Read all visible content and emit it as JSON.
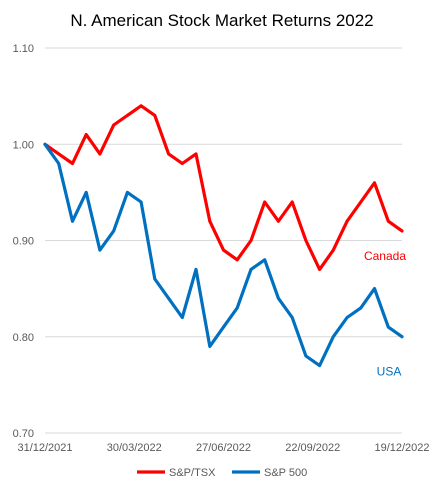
{
  "chart_data": {
    "type": "line",
    "title": "N. American Stock Market Returns 2022",
    "xlabel": "",
    "ylabel": "",
    "ylim": [
      0.7,
      1.1
    ],
    "y_ticks": [
      "0.70",
      "0.80",
      "0.90",
      "1.00",
      "1.10"
    ],
    "x_ticks": [
      "31/12/2021",
      "30/03/2022",
      "27/06/2022",
      "22/09/2022",
      "19/12/2022"
    ],
    "grid": "horizontal",
    "legend_placement": "bottom",
    "x": [
      "31/12/2021",
      "14/01/2022",
      "28/01/2022",
      "11/02/2022",
      "25/02/2022",
      "11/03/2022",
      "25/03/2022",
      "08/04/2022",
      "22/04/2022",
      "06/05/2022",
      "20/05/2022",
      "03/06/2022",
      "17/06/2022",
      "01/07/2022",
      "15/07/2022",
      "29/07/2022",
      "12/08/2022",
      "26/08/2022",
      "09/09/2022",
      "23/09/2022",
      "07/10/2022",
      "21/10/2022",
      "04/11/2022",
      "18/11/2022",
      "02/12/2022",
      "16/12/2022",
      "30/12/2022"
    ],
    "series": [
      {
        "name": "S&P/TSX",
        "color": "#ff0000",
        "values": [
          1.0,
          0.99,
          0.98,
          1.01,
          0.99,
          1.02,
          1.03,
          1.04,
          1.03,
          0.99,
          0.98,
          0.99,
          0.92,
          0.89,
          0.88,
          0.9,
          0.94,
          0.92,
          0.94,
          0.9,
          0.87,
          0.89,
          0.92,
          0.94,
          0.96,
          0.92,
          0.91
        ]
      },
      {
        "name": "S&P 500",
        "color": "#0070c0",
        "values": [
          1.0,
          0.98,
          0.92,
          0.95,
          0.89,
          0.91,
          0.95,
          0.94,
          0.86,
          0.84,
          0.82,
          0.87,
          0.79,
          0.81,
          0.83,
          0.87,
          0.88,
          0.84,
          0.82,
          0.78,
          0.77,
          0.8,
          0.82,
          0.83,
          0.85,
          0.81,
          0.8
        ]
      }
    ],
    "annotations": [
      {
        "text": "Canada",
        "color": "#ff0000"
      },
      {
        "text": "USA",
        "color": "#0070c0"
      }
    ]
  }
}
